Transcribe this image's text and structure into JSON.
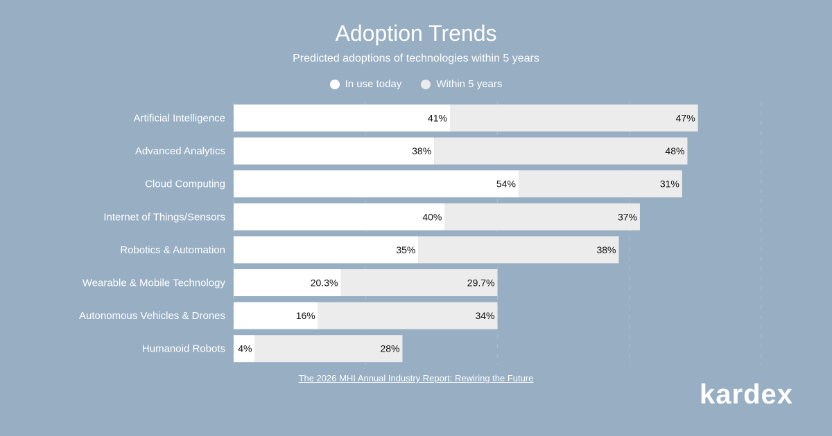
{
  "header": {
    "title": "Adoption Trends",
    "subtitle": "Predicted adoptions of technologies within 5 years"
  },
  "legend": [
    {
      "label": "In use today",
      "color": "#ffffff"
    },
    {
      "label": "Within 5 years",
      "color": "#ececec"
    }
  ],
  "source": "The 2026 MHI Annual Industry Report: Rewiring the Future",
  "brand": "kardex",
  "chart_data": {
    "type": "bar",
    "orientation": "horizontal",
    "stacked": true,
    "title": "Adoption Trends",
    "subtitle": "Predicted adoptions of technologies within 5 years",
    "xlim": [
      0,
      100
    ],
    "grid": true,
    "legend_position": "top-center",
    "categories": [
      "Artificial Intelligence",
      "Advanced Analytics",
      "Cloud Computing",
      "Internet of Things/Sensors",
      "Robotics & Automation",
      "Wearable & Mobile Technology",
      "Autonomous Vehicles & Drones",
      "Humanoid Robots"
    ],
    "series": [
      {
        "name": "In use today",
        "color": "#ffffff",
        "values": [
          41,
          38,
          54,
          40,
          35,
          20.3,
          16,
          4
        ],
        "labels": [
          "41%",
          "38%",
          "54%",
          "40%",
          "35%",
          "20.3%",
          "16%",
          "4%"
        ]
      },
      {
        "name": "Within 5 years",
        "color": "#ececec",
        "values": [
          47,
          48,
          31,
          37,
          38,
          29.7,
          34,
          28
        ],
        "labels": [
          "47%",
          "48%",
          "31%",
          "37%",
          "38%",
          "29.7%",
          "34%",
          "28%"
        ]
      }
    ]
  }
}
